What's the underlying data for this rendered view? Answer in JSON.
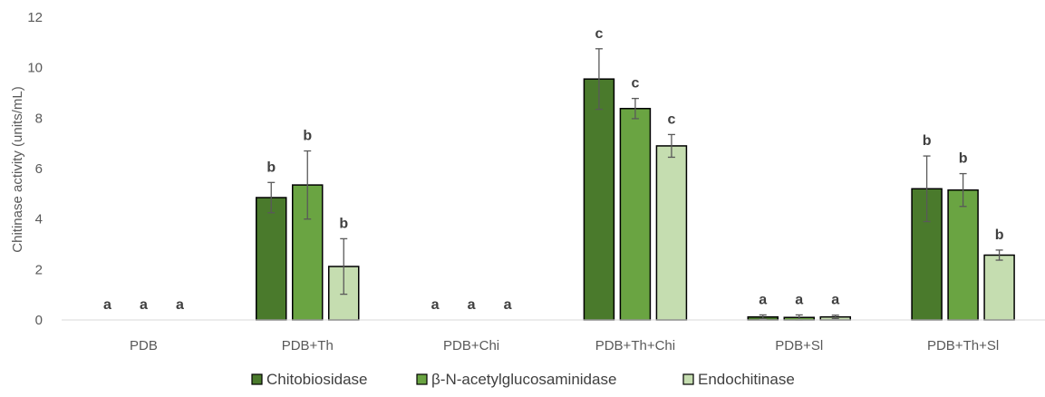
{
  "chart_data": {
    "type": "bar",
    "title": "",
    "xlabel": "",
    "ylabel": "Chitinase activity  (units/mL)",
    "ylim": [
      0,
      12
    ],
    "yticks": [
      0,
      2,
      4,
      6,
      8,
      10,
      12
    ],
    "grid": false,
    "legend_position": "bottom",
    "categories": [
      "PDB",
      "PDB+Th",
      "PDB+Chi",
      "PDB+Th+Chi",
      "PDB+Sl",
      "PDB+Th+Sl"
    ],
    "series": [
      {
        "name": "Chitobiosidase",
        "color": "#4a7a2c",
        "values": [
          0,
          4.85,
          0,
          9.55,
          0.12,
          5.2
        ],
        "errors": [
          0,
          0.6,
          0,
          1.2,
          0.08,
          1.3
        ],
        "letters": [
          "a",
          "b",
          "a",
          "c",
          "a",
          "b"
        ]
      },
      {
        "name": "β-N-acetylglucosaminidase",
        "color": "#6aa442",
        "values": [
          0,
          5.35,
          0,
          8.38,
          0.1,
          5.15
        ],
        "errors": [
          0,
          1.35,
          0,
          0.4,
          0.1,
          0.65
        ],
        "letters": [
          "a",
          "b",
          "a",
          "c",
          "a",
          "b"
        ]
      },
      {
        "name": "Endochitinase",
        "color": "#c5ddb0",
        "values": [
          0,
          2.12,
          0,
          6.9,
          0.12,
          2.57
        ],
        "errors": [
          0,
          1.1,
          0,
          0.45,
          0.07,
          0.2
        ],
        "letters": [
          "a",
          "b",
          "a",
          "c",
          "a",
          "b"
        ]
      }
    ]
  }
}
